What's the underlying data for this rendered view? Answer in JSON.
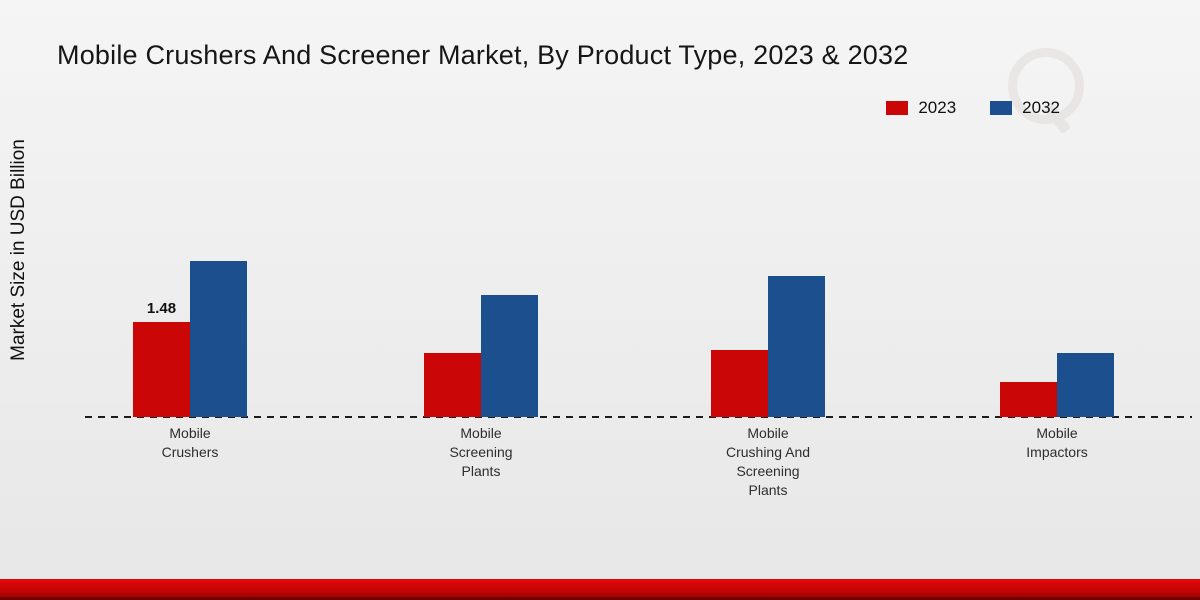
{
  "title": "Mobile Crushers And Screener Market, By Product Type, 2023 & 2032",
  "y_axis_label": "Market Size in USD Billion",
  "legend": {
    "items": [
      {
        "label": "2023",
        "color": "#cb0606"
      },
      {
        "label": "2032",
        "color": "#1b4f8e"
      }
    ]
  },
  "colors": {
    "series_2023": "#cb0606",
    "series_2032": "#1b4f8e",
    "footer_band": "#c40404",
    "background": "#efefef"
  },
  "chart_data": {
    "type": "bar",
    "title": "Mobile Crushers And Screener Market, By Product Type, 2023 & 2032",
    "xlabel": "",
    "ylabel": "Market Size in USD Billion",
    "categories": [
      "Mobile Crushers",
      "Mobile Screening Plants",
      "Mobile Crushing And Screening Plants",
      "Mobile Impactors"
    ],
    "series": [
      {
        "name": "2023",
        "color": "#cb0606",
        "values": [
          1.48,
          1.0,
          1.05,
          0.55
        ]
      },
      {
        "name": "2032",
        "color": "#1b4f8e",
        "values": [
          2.43,
          1.9,
          2.2,
          1.0
        ]
      }
    ],
    "annotations": [
      {
        "category_index": 0,
        "series_index": 0,
        "text": "1.48"
      }
    ],
    "ylim": [
      0,
      2.6
    ],
    "grid": false,
    "legend_position": "top-right",
    "baseline_style": "dashed"
  }
}
